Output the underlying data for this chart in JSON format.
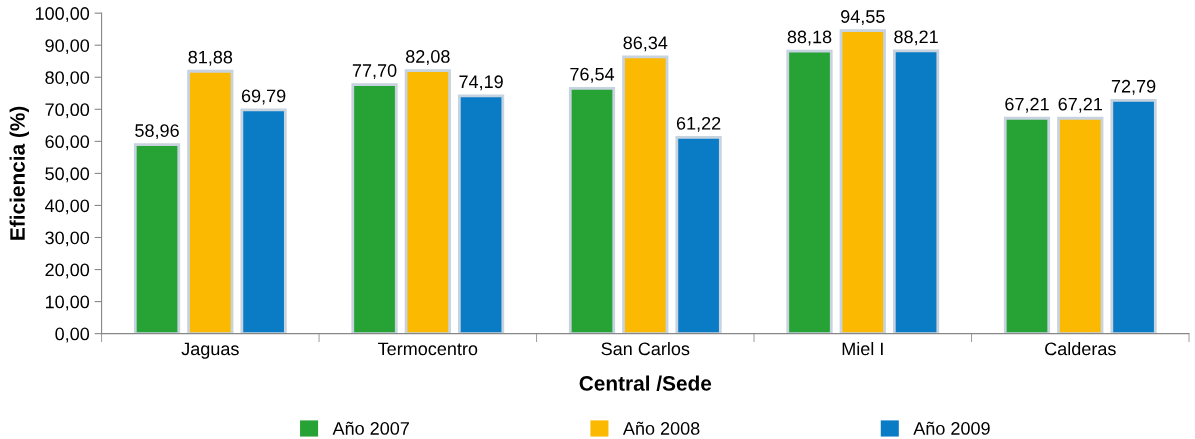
{
  "chart_data": {
    "type": "bar",
    "xlabel": "Central /Sede",
    "ylabel": "Eficiencia (%)",
    "categories": [
      "Jaguas",
      "Termocentro",
      "San Carlos",
      "Miel I",
      "Calderas"
    ],
    "series": [
      {
        "name": "Año 2007",
        "color": "#27a235",
        "values": [
          58.96,
          77.7,
          76.54,
          88.18,
          67.21
        ],
        "value_labels": [
          "58,96",
          "77,70",
          "76,54",
          "88,18",
          "67,21"
        ]
      },
      {
        "name": "Año 2008",
        "color": "#fbb901",
        "values": [
          81.88,
          82.08,
          86.34,
          94.55,
          67.21
        ],
        "value_labels": [
          "81,88",
          "82,08",
          "86,34",
          "94,55",
          "67,21"
        ]
      },
      {
        "name": "Año 2009",
        "color": "#0a7cc6",
        "values": [
          69.79,
          74.19,
          61.22,
          88.21,
          72.79
        ],
        "value_labels": [
          "69,79",
          "74,19",
          "61,22",
          "88,21",
          "72,79"
        ]
      }
    ],
    "ylim": [
      0,
      100
    ],
    "yticks": [
      {
        "value": 0,
        "label": "0,00"
      },
      {
        "value": 10,
        "label": "10,00"
      },
      {
        "value": 20,
        "label": "20,00"
      },
      {
        "value": 30,
        "label": "30,00"
      },
      {
        "value": 40,
        "label": "40,00"
      },
      {
        "value": 50,
        "label": "50,00"
      },
      {
        "value": 60,
        "label": "60,00"
      },
      {
        "value": 70,
        "label": "70,00"
      },
      {
        "value": 80,
        "label": "80,00"
      },
      {
        "value": 90,
        "label": "90,00"
      },
      {
        "value": 100,
        "label": "100,00"
      }
    ],
    "grid": false,
    "legend": "bottom"
  }
}
